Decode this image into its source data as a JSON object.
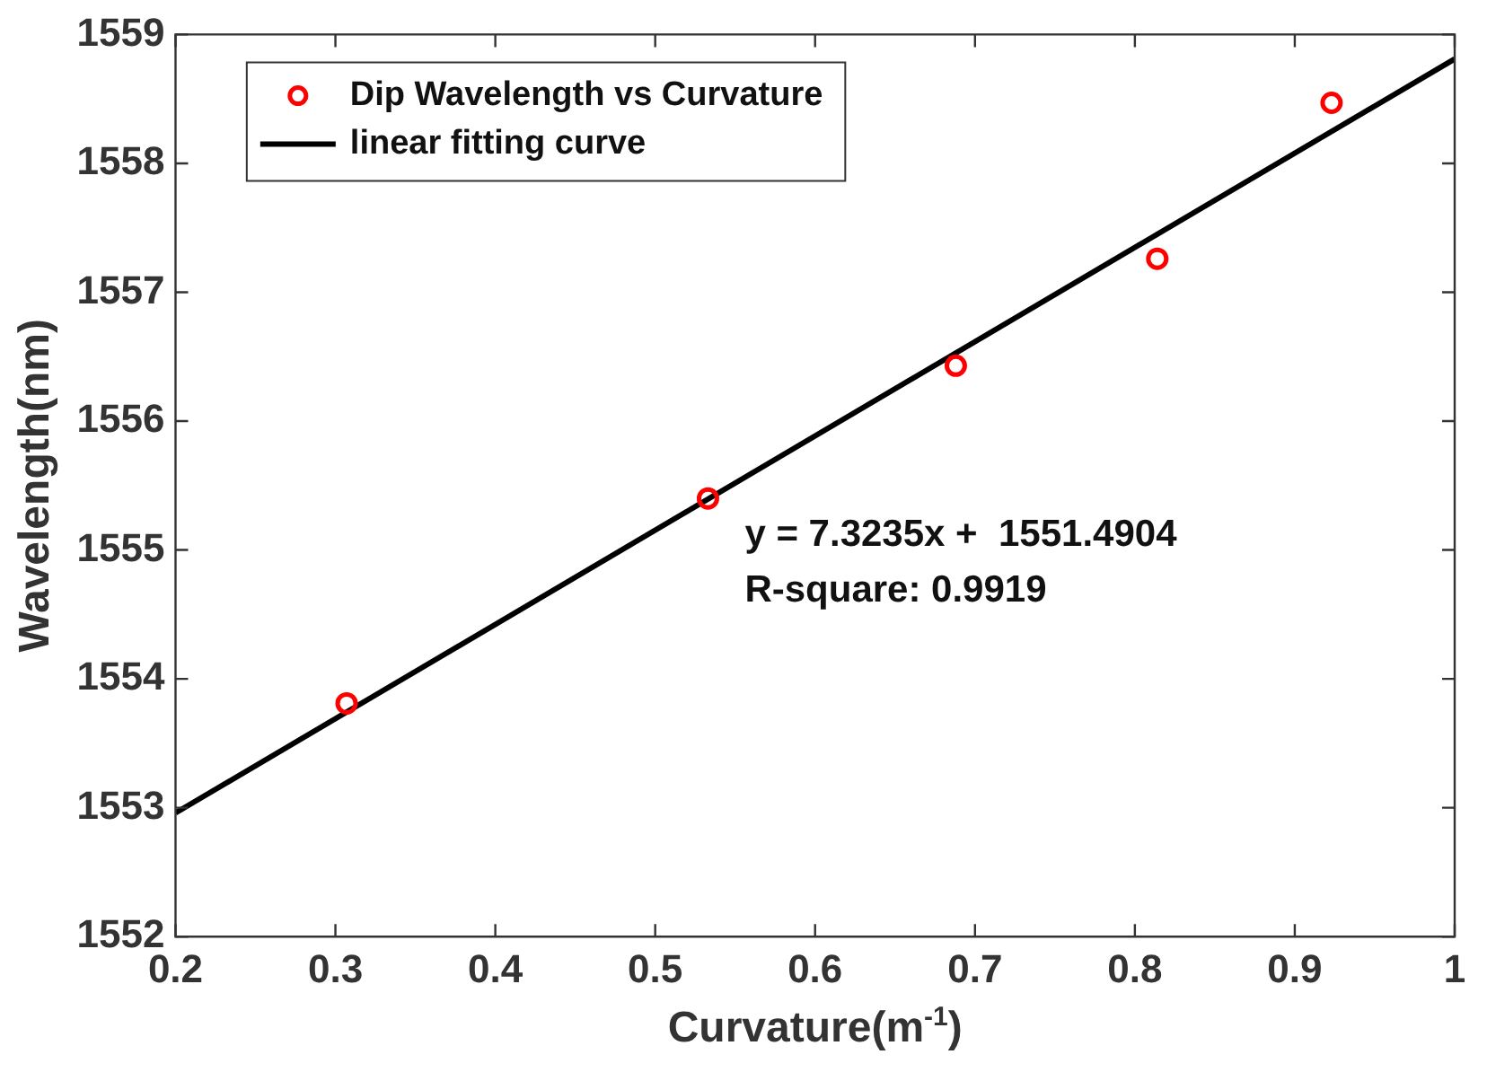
{
  "chart_data": {
    "type": "scatter",
    "xlabel": "Curvature(m$^{-1}$)",
    "ylabel": "Wavelength(nm)",
    "series": [
      {
        "name": "Dip Wavelength vs Curvature",
        "type": "scatter",
        "color": "#ff0000",
        "marker": "circle",
        "x": [
          0.307,
          0.533,
          0.688,
          0.814,
          0.923
        ],
        "values": [
          1553.81,
          1555.4,
          1556.43,
          1557.26,
          1558.47
        ]
      },
      {
        "name": "linear fitting curve",
        "type": "line",
        "color": "#000000",
        "line_style": "solid",
        "x": [
          0.2,
          1
        ],
        "values": [
          1552.96,
          1558.81
        ]
      }
    ],
    "xlim": [
      0.2,
      1
    ],
    "xticks": [
      0.2,
      0.3,
      0.4,
      0.5,
      0.6,
      0.7,
      0.8,
      0.9,
      1
    ],
    "ylim": [
      1552,
      1559
    ],
    "yticks": [
      1552,
      1553,
      1554,
      1555,
      1556,
      1557,
      1558,
      1559
    ],
    "annotations": [
      "y = 7.3235x +  1551.4904",
      "R-square: 0.9919"
    ],
    "legend": "top left",
    "grid": false
  }
}
